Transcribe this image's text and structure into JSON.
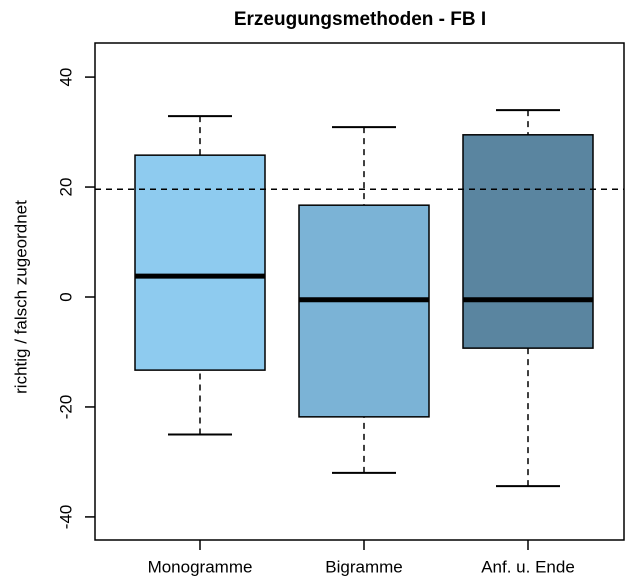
{
  "chart_data": {
    "type": "box",
    "title": "Erzeugungsmethoden - FB I",
    "y_label": "richtig / falsch zugeordnet",
    "categories": [
      "Monogramme",
      "Bigramme",
      "Anf. u. Ende"
    ],
    "min": [
      -25,
      -32,
      -34.4
    ],
    "q1": [
      -13.3,
      -21.8,
      -9.3
    ],
    "median": [
      3.8,
      -0.5,
      -0.5
    ],
    "q3": [
      25.8,
      16.7,
      29.5
    ],
    "max": [
      32.9,
      30.9,
      34
    ],
    "colors": [
      "#8ecbef",
      "#7bb3d6",
      "#5a85a0"
    ],
    "reference_line": 19.6,
    "ylim": [
      -44.2,
      46.2
    ],
    "yticks": [
      -40,
      -20,
      0,
      20,
      40
    ]
  }
}
